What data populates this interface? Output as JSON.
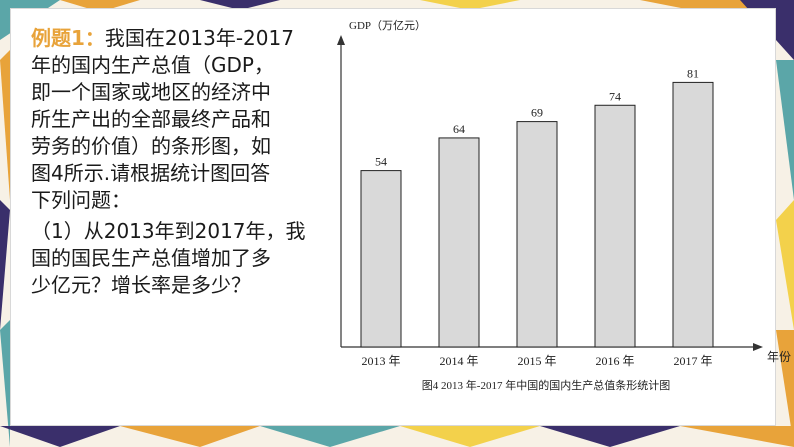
{
  "problem": {
    "label": "例题1：",
    "lines": [
      "我国在2013年-2017",
      "年的国内生产总值（GDP，",
      "即一个国家或地区的经济中",
      "所生产出的全部最终产品和",
      "劳务的价值）的条形图，如",
      "图4所示.请根据统计图回答",
      "下列问题：",
      "（1）从2013年到2017年，我",
      "国的国民生产总值增加了多",
      "少亿元？增长率是多少？"
    ]
  },
  "chart_data": {
    "type": "bar",
    "categories": [
      "2013 年",
      "2014 年",
      "2015 年",
      "2016 年",
      "2017 年"
    ],
    "values": [
      54,
      64,
      69,
      74,
      81
    ],
    "ylabel": "GDP（万亿元）",
    "xlabel": "年份",
    "caption": "图4 2013 年-2017 年中国的国内生产总值条形统计图",
    "ylim": [
      0,
      90
    ],
    "bar_color": "#d9d9d9",
    "grid": false
  },
  "colors": {
    "label": "#e8a33a",
    "pattern": [
      "#e8a33a",
      "#f3d14b",
      "#5ba6a8",
      "#3a2f6b",
      "#cfe3d8"
    ]
  }
}
